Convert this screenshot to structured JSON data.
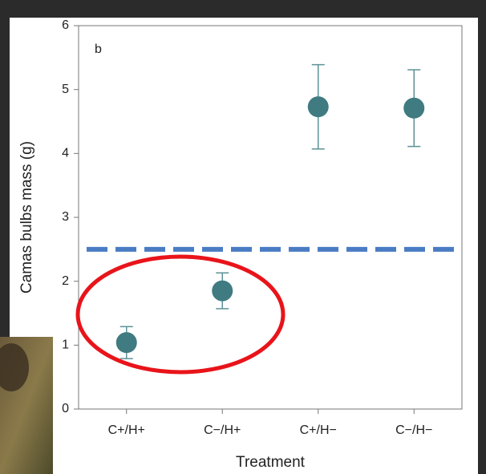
{
  "chart_data": {
    "type": "errorbar",
    "panel_label": "b",
    "x_label": "Treatment",
    "y_label": "Camas bulbs mass (g)",
    "categories": [
      "C+/H+",
      "C−/H+",
      "C+/H−",
      "C−/H−"
    ],
    "values": [
      1.04,
      1.85,
      4.73,
      4.71
    ],
    "errors": [
      0.25,
      0.28,
      0.66,
      0.6
    ],
    "color": "#3f7b80",
    "ylim": [
      0,
      6
    ],
    "yticks": [
      0,
      1,
      2,
      3,
      4,
      5,
      6
    ],
    "reference_line": {
      "value": 2.5,
      "color": "#4a7cc4"
    }
  }
}
